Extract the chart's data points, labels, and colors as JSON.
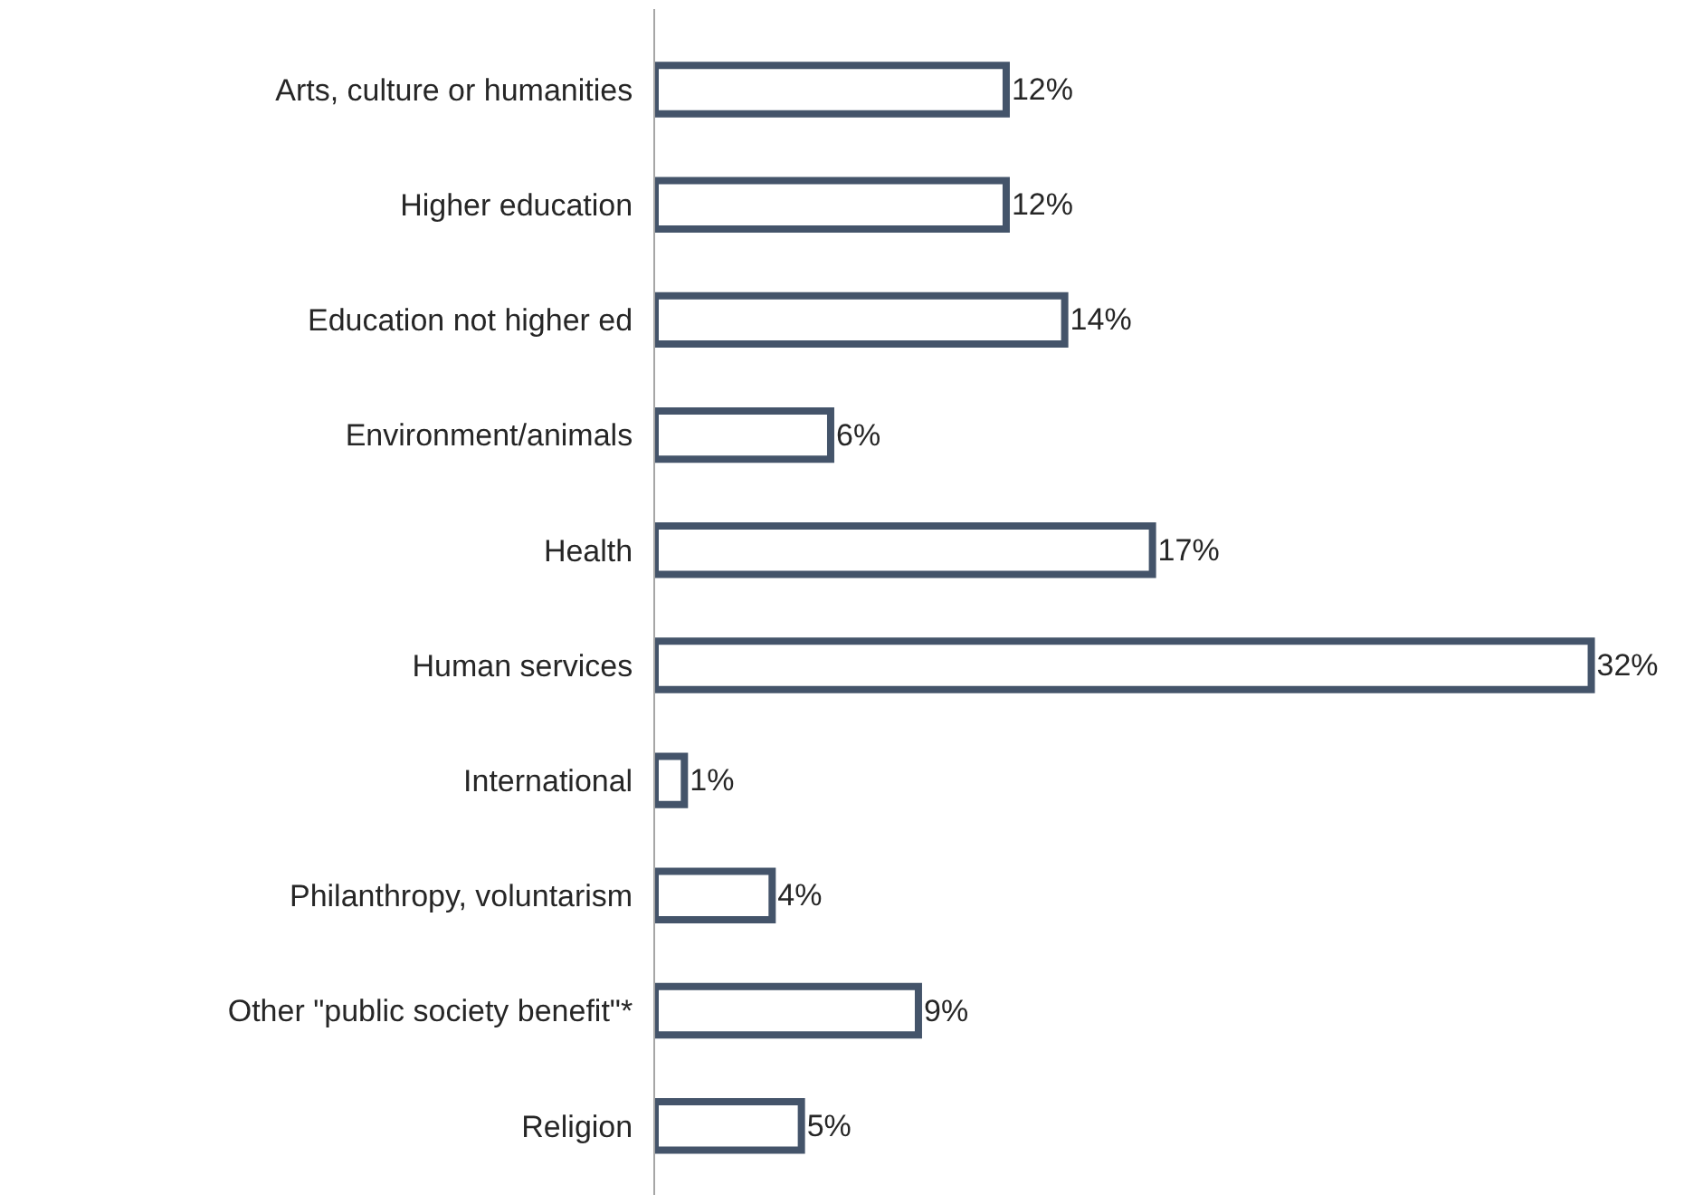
{
  "chart_data": {
    "type": "bar",
    "orientation": "horizontal",
    "categories": [
      "Arts, culture or humanities",
      "Higher education",
      "Education not higher ed",
      "Environment/animals",
      "Health",
      "Human services",
      "International",
      "Philanthropy, voluntarism",
      "Other \"public society benefit\"*",
      "Religion"
    ],
    "values": [
      12,
      12,
      14,
      6,
      17,
      32,
      1,
      4,
      9,
      5
    ],
    "value_labels": [
      "12%",
      "12%",
      "14%",
      "6%",
      "17%",
      "32%",
      "1%",
      "4%",
      "9%",
      "5%"
    ],
    "color": "#44546a"
  }
}
